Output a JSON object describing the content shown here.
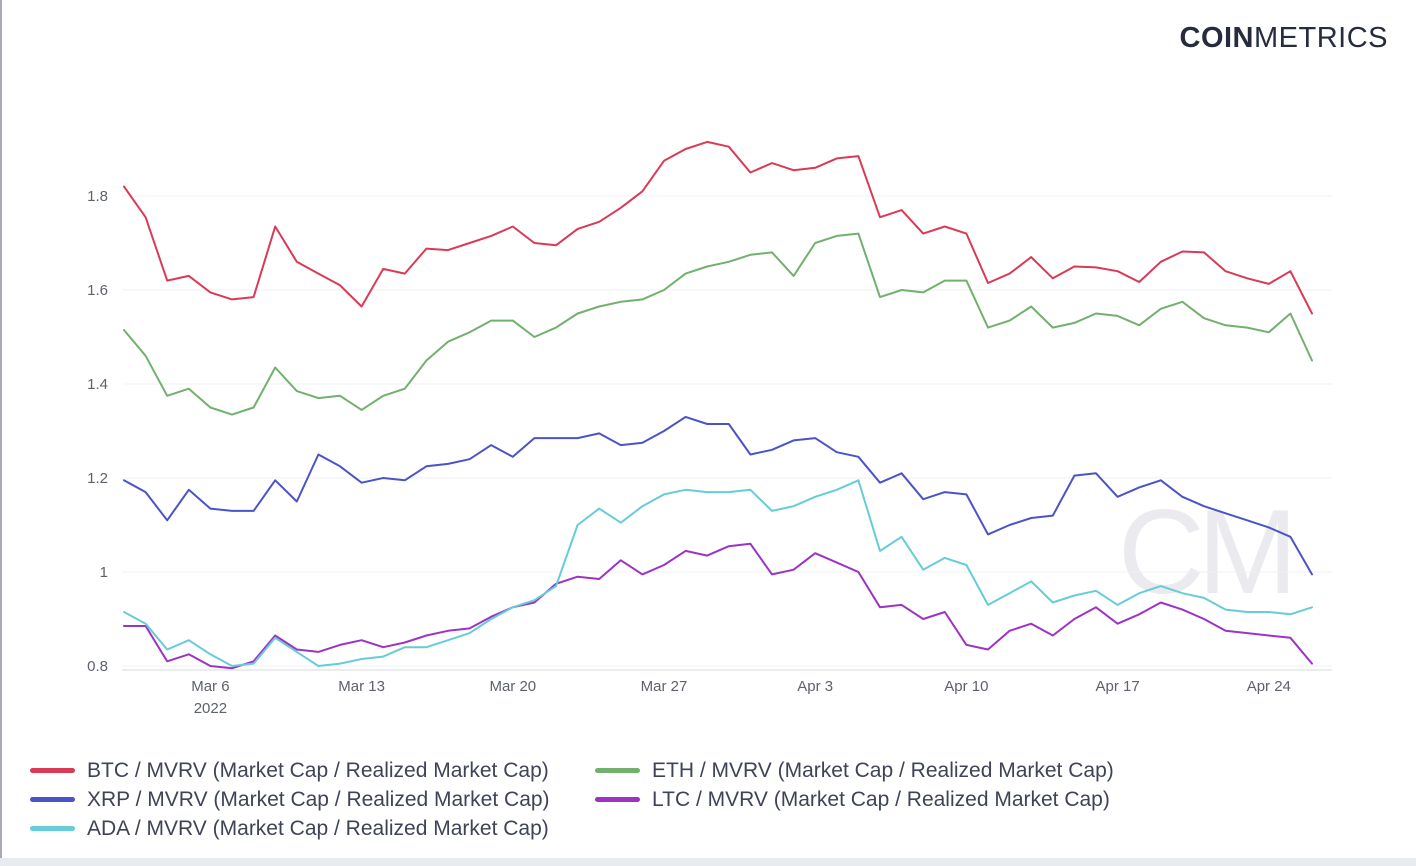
{
  "brand": {
    "logo_bold": "COIN",
    "logo_light": "METRICS"
  },
  "watermark_text": "CM",
  "chart_data": {
    "type": "line",
    "title": "",
    "x_axis_year": "2022",
    "x_tick_labels": [
      "Mar 6",
      "Mar 13",
      "Mar 20",
      "Mar 27",
      "Apr 3",
      "Apr 10",
      "Apr 17",
      "Apr 24"
    ],
    "y_tick_labels": [
      "1.8",
      "1.6",
      "1.4",
      "1.2",
      "1",
      "0.8"
    ],
    "ylim": [
      0.8,
      1.96
    ],
    "grid": true,
    "legend_position": "bottom",
    "dates": [
      "Mar 2",
      "Mar 3",
      "Mar 4",
      "Mar 5",
      "Mar 6",
      "Mar 7",
      "Mar 8",
      "Mar 9",
      "Mar 10",
      "Mar 11",
      "Mar 12",
      "Mar 13",
      "Mar 14",
      "Mar 15",
      "Mar 16",
      "Mar 17",
      "Mar 18",
      "Mar 19",
      "Mar 20",
      "Mar 21",
      "Mar 22",
      "Mar 23",
      "Mar 24",
      "Mar 25",
      "Mar 26",
      "Mar 27",
      "Mar 28",
      "Mar 29",
      "Mar 30",
      "Mar 31",
      "Apr 1",
      "Apr 2",
      "Apr 3",
      "Apr 4",
      "Apr 5",
      "Apr 6",
      "Apr 7",
      "Apr 8",
      "Apr 9",
      "Apr 10",
      "Apr 11",
      "Apr 12",
      "Apr 13",
      "Apr 14",
      "Apr 15",
      "Apr 16",
      "Apr 17",
      "Apr 18",
      "Apr 19",
      "Apr 20",
      "Apr 21",
      "Apr 22",
      "Apr 23",
      "Apr 24",
      "Apr 25",
      "Apr 26"
    ],
    "series": [
      {
        "name": "BTC / MVRV (Market Cap / Realized Market Cap)",
        "color": "#d93a55",
        "values": [
          1.82,
          1.755,
          1.62,
          1.63,
          1.595,
          1.58,
          1.585,
          1.735,
          1.66,
          1.635,
          1.61,
          1.565,
          1.645,
          1.635,
          1.688,
          1.685,
          1.7,
          1.715,
          1.735,
          1.7,
          1.695,
          1.73,
          1.745,
          1.775,
          1.81,
          1.875,
          1.9,
          1.915,
          1.905,
          1.85,
          1.87,
          1.855,
          1.86,
          1.88,
          1.885,
          1.755,
          1.77,
          1.72,
          1.735,
          1.72,
          1.615,
          1.635,
          1.67,
          1.625,
          1.65,
          1.648,
          1.64,
          1.617,
          1.66,
          1.682,
          1.68,
          1.64,
          1.625,
          1.613,
          1.64,
          1.55
        ]
      },
      {
        "name": "ETH / MVRV (Market Cap / Realized Market Cap)",
        "color": "#72b06e",
        "values": [
          1.515,
          1.46,
          1.375,
          1.39,
          1.35,
          1.335,
          1.35,
          1.435,
          1.385,
          1.37,
          1.375,
          1.345,
          1.375,
          1.39,
          1.45,
          1.49,
          1.51,
          1.535,
          1.535,
          1.5,
          1.52,
          1.55,
          1.565,
          1.575,
          1.58,
          1.6,
          1.635,
          1.65,
          1.66,
          1.675,
          1.68,
          1.63,
          1.7,
          1.715,
          1.72,
          1.585,
          1.6,
          1.595,
          1.62,
          1.62,
          1.52,
          1.535,
          1.565,
          1.52,
          1.53,
          1.55,
          1.545,
          1.525,
          1.56,
          1.575,
          1.54,
          1.525,
          1.52,
          1.51,
          1.55,
          1.45
        ]
      },
      {
        "name": "XRP / MVRV (Market Cap / Realized Market Cap)",
        "color": "#4a54c6",
        "values": [
          1.195,
          1.17,
          1.11,
          1.175,
          1.135,
          1.13,
          1.13,
          1.195,
          1.15,
          1.25,
          1.225,
          1.19,
          1.2,
          1.195,
          1.225,
          1.23,
          1.24,
          1.27,
          1.245,
          1.285,
          1.285,
          1.285,
          1.295,
          1.27,
          1.275,
          1.3,
          1.33,
          1.315,
          1.315,
          1.25,
          1.26,
          1.28,
          1.285,
          1.255,
          1.245,
          1.19,
          1.21,
          1.155,
          1.17,
          1.165,
          1.08,
          1.1,
          1.115,
          1.12,
          1.205,
          1.21,
          1.16,
          1.18,
          1.195,
          1.16,
          1.14,
          1.125,
          1.11,
          1.095,
          1.075,
          0.995
        ]
      },
      {
        "name": "LTC / MVRV (Market Cap / Realized Market Cap)",
        "color": "#9d33c4",
        "values": [
          0.885,
          0.885,
          0.81,
          0.825,
          0.8,
          0.795,
          0.81,
          0.865,
          0.835,
          0.83,
          0.845,
          0.855,
          0.84,
          0.85,
          0.865,
          0.875,
          0.88,
          0.905,
          0.925,
          0.935,
          0.975,
          0.99,
          0.985,
          1.025,
          0.995,
          1.015,
          1.045,
          1.035,
          1.055,
          1.06,
          0.995,
          1.005,
          1.04,
          1.02,
          1.0,
          0.925,
          0.93,
          0.9,
          0.915,
          0.845,
          0.835,
          0.875,
          0.89,
          0.865,
          0.9,
          0.925,
          0.89,
          0.91,
          0.935,
          0.92,
          0.9,
          0.875,
          0.87,
          0.865,
          0.86,
          0.805
        ]
      },
      {
        "name": "ADA / MVRV (Market Cap / Realized Market Cap)",
        "color": "#66ccd8",
        "values": [
          0.915,
          0.89,
          0.835,
          0.855,
          0.825,
          0.8,
          0.805,
          0.86,
          0.83,
          0.8,
          0.805,
          0.815,
          0.82,
          0.84,
          0.84,
          0.855,
          0.87,
          0.9,
          0.925,
          0.94,
          0.97,
          1.1,
          1.135,
          1.105,
          1.14,
          1.165,
          1.175,
          1.17,
          1.17,
          1.175,
          1.13,
          1.14,
          1.16,
          1.175,
          1.195,
          1.045,
          1.075,
          1.005,
          1.03,
          1.015,
          0.93,
          0.955,
          0.98,
          0.935,
          0.95,
          0.96,
          0.93,
          0.955,
          0.97,
          0.955,
          0.945,
          0.92,
          0.915,
          0.915,
          0.91,
          0.925
        ]
      }
    ]
  },
  "colors": {
    "grid": "#eef0f3",
    "axis_line": "#d4d8dd",
    "axis_text": "#5d626b",
    "legend_text": "#3e4456",
    "logo": "#262c3e",
    "watermark": "#eaeaef",
    "page_border": "#a9a9b5",
    "bottom_bar": "#e8ebf0"
  }
}
